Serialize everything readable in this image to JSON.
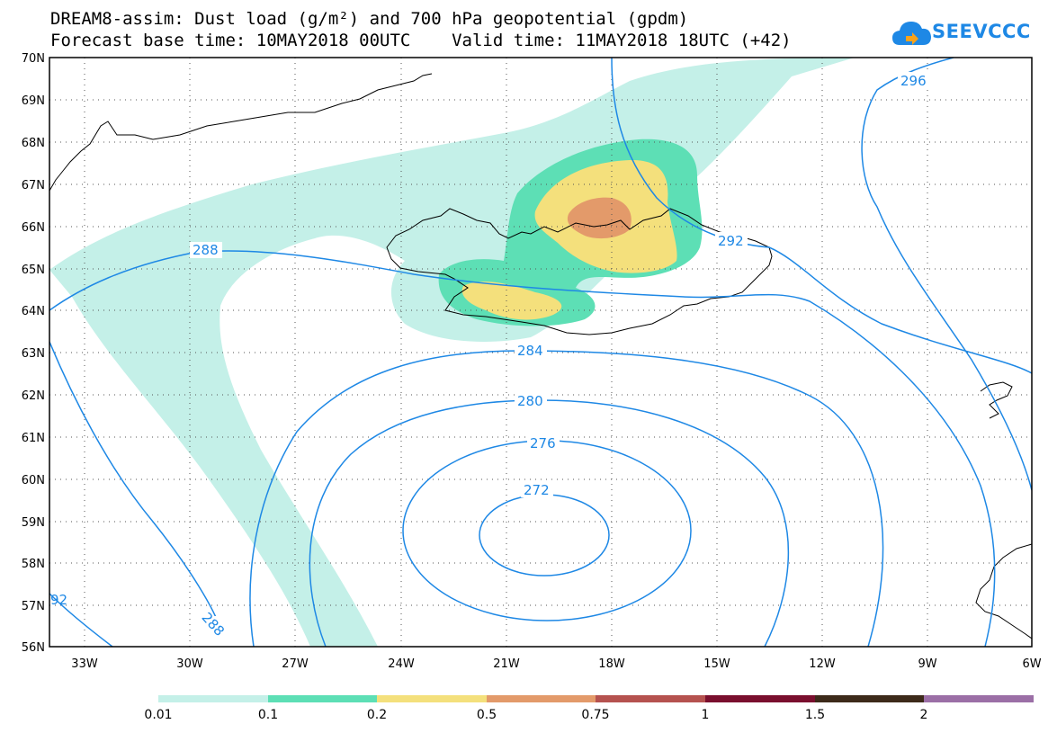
{
  "title": {
    "line1": "DREAM8-assim: Dust load (g/m²) and 700 hPa geopotential (gpdm)",
    "line2": "Forecast base time: 10MAY2018 00UTC    Valid time: 11MAY2018 18UTC (+42)"
  },
  "logo": {
    "text": "SEEVCCC"
  },
  "axes": {
    "lat_labels": [
      "70N",
      "69N",
      "68N",
      "67N",
      "66N",
      "65N",
      "64N",
      "63N",
      "62N",
      "61N",
      "60N",
      "59N",
      "58N",
      "57N",
      "56N"
    ],
    "lon_labels": [
      "33W",
      "30W",
      "27W",
      "24W",
      "21W",
      "18W",
      "15W",
      "12W",
      "9W",
      "6W"
    ]
  },
  "contour_labels": [
    "296",
    "292",
    "288",
    "288",
    "284",
    "280",
    "276",
    "272",
    "92"
  ],
  "legend": {
    "colors": [
      "#c4f0e8",
      "#5ddfb5",
      "#f4e07c",
      "#e39a6a",
      "#b5524f",
      "#7a0f2e",
      "#3d2a1a",
      "#9b6fa6"
    ],
    "labels": [
      "0.01",
      "0.1",
      "0.2",
      "0.5",
      "0.75",
      "1",
      "1.5",
      "2"
    ]
  },
  "colors": {
    "contour": "#1e88e5",
    "coast": "#000000"
  }
}
